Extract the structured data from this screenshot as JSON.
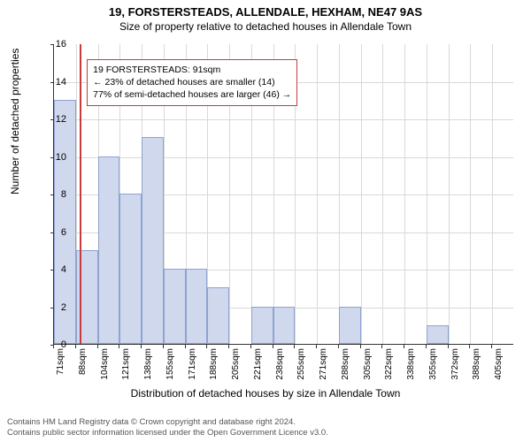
{
  "title": "19, FORSTERSTEADS, ALLENDALE, HEXHAM, NE47 9AS",
  "subtitle": "Size of property relative to detached houses in Allendale Town",
  "chart": {
    "type": "histogram",
    "xlabel": "Distribution of detached houses by size in Allendale Town",
    "ylabel": "Number of detached properties",
    "ylim": [
      0,
      16
    ],
    "ytick_step": 2,
    "bin_width_sqm": 17,
    "x_start": 71,
    "x_labels_every_n": 1,
    "categories": [
      "71sqm",
      "88sqm",
      "104sqm",
      "121sqm",
      "138sqm",
      "155sqm",
      "171sqm",
      "188sqm",
      "205sqm",
      "221sqm",
      "238sqm",
      "255sqm",
      "271sqm",
      "288sqm",
      "305sqm",
      "322sqm",
      "338sqm",
      "355sqm",
      "372sqm",
      "388sqm",
      "405sqm"
    ],
    "values": [
      13,
      5,
      10,
      8,
      11,
      4,
      4,
      3,
      0,
      2,
      2,
      0,
      0,
      2,
      0,
      0,
      0,
      1,
      0,
      0,
      0
    ],
    "bar_color": "#cfd8ec",
    "bar_border": "#8fa3d1",
    "background_color": "#ffffff",
    "grid_color": "#d9d9d9",
    "axis_color": "#333333",
    "marker": {
      "value_sqm": 91,
      "color": "#c63b3b"
    },
    "annotation": {
      "lines": [
        "19 FORSTERSTEADS: 91sqm",
        "← 23% of detached houses are smaller (14)",
        "77% of semi-detached houses are larger (46) →"
      ],
      "border_color": "#c63b3b"
    },
    "tick_fontsize": 11,
    "label_fontsize": 12,
    "title_fontsize": 13
  },
  "footer": {
    "line1": "Contains HM Land Registry data © Crown copyright and database right 2024.",
    "line2": "Contains public sector information licensed under the Open Government Licence v3.0."
  }
}
